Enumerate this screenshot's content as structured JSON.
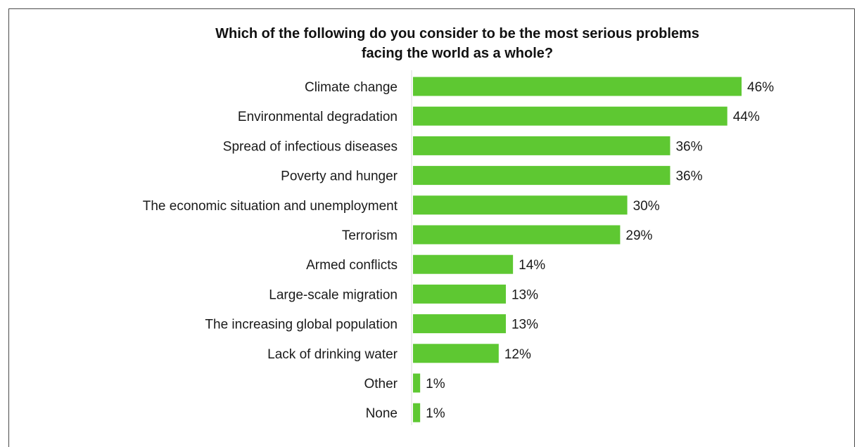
{
  "chart_data": {
    "type": "bar",
    "orientation": "horizontal",
    "title_lines": [
      "Which of the following do you consider to be the most serious problems",
      "facing the world as a whole?"
    ],
    "categories": [
      "Climate change",
      "Environmental degradation",
      "Spread of infectious diseases",
      "Poverty and hunger",
      "The economic situation and unemployment",
      "Terrorism",
      "Armed conflicts",
      "Large-scale migration",
      "The increasing global population",
      "Lack of drinking water",
      "Other",
      "None"
    ],
    "values": [
      46,
      44,
      36,
      36,
      30,
      29,
      14,
      13,
      13,
      12,
      1,
      1
    ],
    "value_labels": [
      "46%",
      "44%",
      "36%",
      "36%",
      "30%",
      "29%",
      "14%",
      "13%",
      "13%",
      "12%",
      "1%",
      "1%"
    ],
    "xlim": [
      0,
      46
    ],
    "grid": false,
    "bar_color": "#5ec832"
  }
}
